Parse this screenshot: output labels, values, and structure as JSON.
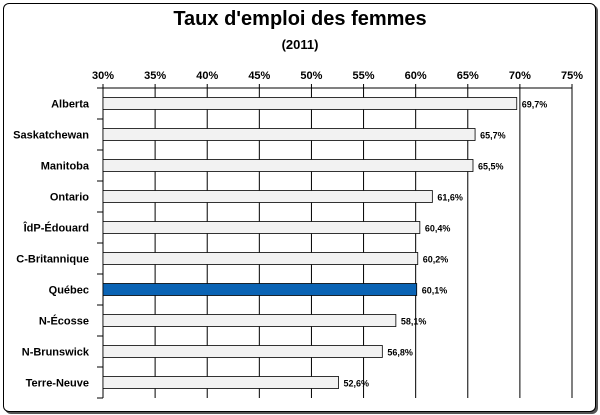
{
  "chart_data": {
    "type": "bar",
    "orientation": "horizontal",
    "title": "Taux d'emploi des femmes",
    "subtitle": "(2011)",
    "categories": [
      "Alberta",
      "Saskatchewan",
      "Manitoba",
      "Ontario",
      "ÎdP-Édouard",
      "C-Britannique",
      "Québec",
      "N-Écosse",
      "N-Brunswick",
      "Terre-Neuve"
    ],
    "values": [
      69.7,
      65.7,
      65.5,
      61.6,
      60.4,
      60.2,
      60.1,
      58.1,
      56.8,
      52.6
    ],
    "value_labels": [
      "69,7%",
      "65,7%",
      "65,5%",
      "61,6%",
      "60,4%",
      "60,2%",
      "60,1%",
      "58,1%",
      "56,8%",
      "52,6%"
    ],
    "xlim": [
      30,
      75
    ],
    "x_ticks": [
      30,
      35,
      40,
      45,
      50,
      55,
      60,
      65,
      70,
      75
    ],
    "x_tick_labels": [
      "30%",
      "35%",
      "40%",
      "45%",
      "50%",
      "55%",
      "60%",
      "65%",
      "70%",
      "75%"
    ],
    "x_axis_position": "top",
    "grid": true,
    "highlight_category": "Québec",
    "colors": {
      "bar": "#f2f2f2",
      "highlight": "#0a63b4",
      "bar_border": "#000000",
      "grid": "#000000"
    }
  }
}
